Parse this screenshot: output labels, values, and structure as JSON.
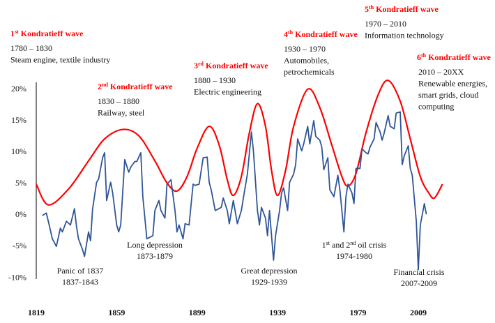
{
  "chart_data": {
    "type": "line",
    "xlim": [
      1819,
      2022
    ],
    "xticks": [
      1819,
      1859,
      1899,
      1939,
      1979,
      2009
    ],
    "ylim": [
      -10.3,
      21
    ],
    "yticks": [
      {
        "value": 20,
        "label": "20%"
      },
      {
        "value": 15,
        "label": "15%"
      },
      {
        "value": 10,
        "label": "10%"
      },
      {
        "value": 5,
        "label": "5%"
      },
      {
        "value": 0,
        "label": "0%"
      },
      {
        "value": -5,
        "label": "-5%"
      },
      {
        "value": -10,
        "label": "-10%"
      }
    ],
    "series": [
      {
        "color": "#ff0000",
        "smooth": true,
        "x": [
          1819,
          1825,
          1835,
          1845,
          1853,
          1862,
          1870,
          1878,
          1884,
          1889,
          1894,
          1899,
          1905,
          1910,
          1914,
          1917,
          1921,
          1925,
          1929,
          1933,
          1936,
          1939,
          1943,
          1947,
          1954,
          1960,
          1966,
          1971,
          1974,
          1978,
          1983,
          1989,
          1994,
          2000,
          2005,
          2010,
          2014,
          2017,
          2021
        ],
        "values": [
          4.8,
          1.5,
          4,
          8.5,
          12,
          13.5,
          12.5,
          8.5,
          5,
          3.7,
          6,
          10.5,
          14,
          11,
          5.5,
          3,
          6,
          13,
          17.6,
          14,
          7,
          3,
          7,
          14,
          19.9,
          17,
          11,
          6,
          4.5,
          6.5,
          13,
          19,
          21.3,
          18,
          12,
          6,
          3.5,
          2.6,
          4.8
        ]
      },
      {
        "color": "#2f5597",
        "smooth": false,
        "x": [
          1822,
          1824,
          1825,
          1827,
          1829,
          1831,
          1832,
          1834,
          1836,
          1838,
          1839,
          1840,
          1842,
          1843,
          1845,
          1846,
          1847,
          1849,
          1850,
          1852,
          1853,
          1854,
          1856,
          1857,
          1859,
          1860,
          1861,
          1863,
          1865,
          1866,
          1868,
          1869,
          1871,
          1872,
          1874,
          1877,
          1878,
          1880,
          1881,
          1883,
          1884,
          1886,
          1888,
          1889,
          1890,
          1892,
          1893,
          1895,
          1897,
          1898,
          1900,
          1902,
          1904,
          1905,
          1906,
          1908,
          1911,
          1912,
          1914,
          1915,
          1917,
          1919,
          1921,
          1922,
          1924,
          1926,
          1927,
          1929,
          1930,
          1931,
          1933,
          1934,
          1935,
          1937,
          1938,
          1940,
          1941,
          1942,
          1944,
          1945,
          1947,
          1948,
          1949,
          1951,
          1952,
          1954,
          1955,
          1957,
          1958,
          1960,
          1961,
          1962,
          1964,
          1965,
          1967,
          1969,
          1970,
          1972,
          1973,
          1974,
          1976,
          1977,
          1978,
          1980,
          1981,
          1983,
          1984,
          1985,
          1987,
          1988,
          1990,
          1991,
          1992,
          1994,
          1995,
          1997,
          1998,
          2000,
          2001,
          2002,
          2004,
          2005,
          2006,
          2008,
          2009,
          2010,
          2012,
          2013
        ],
        "values": [
          -0.2,
          0.2,
          -1.1,
          -3.9,
          -5.1,
          -2.2,
          -2.8,
          -1.1,
          -1.7,
          0.9,
          -1.9,
          -3.9,
          -5.6,
          -6.7,
          -2.8,
          -4.2,
          0.8,
          5.1,
          5.6,
          9,
          9.8,
          2.2,
          5.1,
          3.4,
          -1.7,
          -2.8,
          -1.7,
          8.7,
          6.7,
          7.5,
          8.4,
          8.4,
          9.8,
          2.8,
          -3.9,
          -3.4,
          0.6,
          2.2,
          0.6,
          -0.6,
          4.8,
          5.5,
          0.6,
          -2.8,
          -1.7,
          -3.9,
          -1.5,
          -1.7,
          4.8,
          4.6,
          4.8,
          9,
          9.1,
          5.1,
          3.9,
          0.6,
          1.1,
          2.6,
          0.6,
          -1.5,
          2.2,
          -1.5,
          0.6,
          2.6,
          6.4,
          13.1,
          10.1,
          0.6,
          -1.7,
          1.1,
          -0.6,
          -3.4,
          0.6,
          -7.3,
          -3.4,
          0.6,
          3.4,
          4.2,
          0.6,
          5.1,
          6.4,
          7.9,
          12,
          10.1,
          11.2,
          14,
          11.2,
          14.9,
          12.4,
          11.8,
          10.7,
          7.1,
          9,
          3.9,
          2.8,
          6.2,
          3.9,
          -2.8,
          2.8,
          4.8,
          3.4,
          1.7,
          7.3,
          7.3,
          10.4,
          9.8,
          9.6,
          10.7,
          12,
          14.6,
          13.1,
          11.8,
          12.9,
          15.7,
          14,
          13.6,
          16.1,
          16.3,
          7.9,
          9.3,
          10.9,
          7.3,
          6.2,
          -1.1,
          -8.8,
          -1.7,
          1.7,
          0
        ]
      }
    ],
    "title_color": "#ff0000",
    "annotations": [
      {
        "title": [
          {
            "text": "1"
          },
          {
            "text": "st",
            "sup": true
          },
          {
            "text": " Kondratieff wave"
          }
        ],
        "lines": [
          "1780 – 1830",
          "Steam engine, textile industry"
        ]
      },
      {
        "title": [
          {
            "text": "2"
          },
          {
            "text": "nd",
            "sup": true
          },
          {
            "text": " Kondratieff wave"
          }
        ],
        "lines": [
          "1830 – 1880",
          "Railway, steel"
        ]
      },
      {
        "title": [
          {
            "text": "3"
          },
          {
            "text": "rd",
            "sup": true
          },
          {
            "text": " Kondratieff wave"
          }
        ],
        "lines": [
          "1880 – 1930",
          "Electric engineering"
        ]
      },
      {
        "title": [
          {
            "text": "4"
          },
          {
            "text": "th",
            "sup": true
          },
          {
            "text": " Kondratieff wave"
          }
        ],
        "lines": [
          "1930 – 1970",
          "Automobiles,",
          "petrochemicals"
        ]
      },
      {
        "title": [
          {
            "text": "5"
          },
          {
            "text": "th",
            "sup": true
          },
          {
            "text": " Kondratieff wave"
          }
        ],
        "lines": [
          "1970 – 2010",
          "Information technology"
        ]
      },
      {
        "title": [
          {
            "text": "6"
          },
          {
            "text": "th",
            "sup": true
          },
          {
            "text": " Kondratieff wave"
          }
        ],
        "lines": [
          "2010 – 20XX",
          "Renewable energies,",
          "smart grids, cloud",
          "computing"
        ]
      }
    ],
    "crises": [
      {
        "lines": [
          "Panic of 1837",
          "1837-1843"
        ]
      },
      {
        "lines": [
          "Long depression",
          "1873-1879"
        ]
      },
      {
        "lines": [
          "Great depression",
          "1929-1939"
        ]
      },
      {
        "lines": [
          [
            {
              "text": "1"
            },
            {
              "text": "st",
              "sup": true
            },
            {
              "text": " and 2"
            },
            {
              "text": "nd",
              "sup": true
            },
            {
              "text": " oil crisis"
            }
          ],
          "1974-1980"
        ]
      },
      {
        "lines": [
          "Financial crisis",
          "2007-2009"
        ]
      }
    ]
  }
}
